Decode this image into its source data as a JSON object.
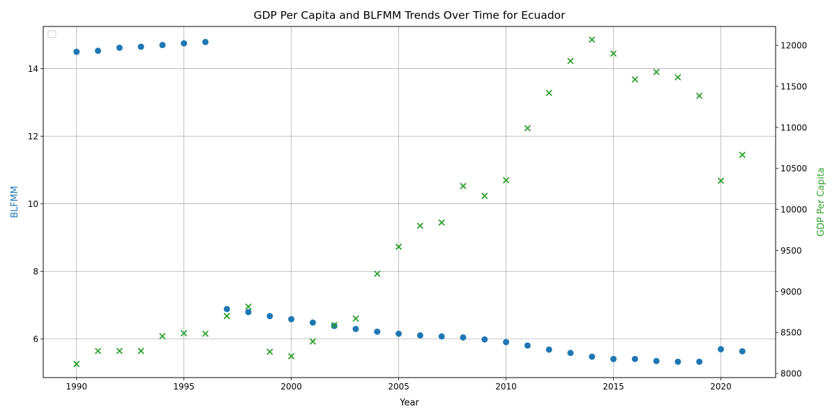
{
  "chart_data": {
    "type": "scatter",
    "title": "GDP Per Capita and BLFMM Trends Over Time for Ecuador",
    "xlabel": "Year",
    "ylabel_left": "BLFMM",
    "ylabel_right": "GDP Per Capita",
    "xlim": [
      1988.45,
      2022.55
    ],
    "ylim_left": [
      4.85,
      15.25
    ],
    "ylim_right": [
      7950,
      12230
    ],
    "x_ticks": [
      1990,
      1995,
      2000,
      2005,
      2010,
      2015,
      2020
    ],
    "y_ticks_left": [
      6,
      8,
      10,
      12,
      14
    ],
    "y_ticks_right": [
      8000,
      8500,
      9000,
      9500,
      10000,
      10500,
      11000,
      11500,
      12000
    ],
    "grid": true,
    "legend": "upper-left, empty",
    "colors": {
      "blfmm": "#1f77b4",
      "gdp": "#2ca02c"
    },
    "series": [
      {
        "axis": "left",
        "marker": "circle",
        "x": [
          1990,
          1991,
          1992,
          1993,
          1994,
          1995,
          1996,
          1997,
          1998,
          1999,
          2000,
          2001,
          2002,
          2003,
          2004,
          2005,
          2006,
          2007,
          2008,
          2009,
          2010,
          2011,
          2012,
          2013,
          2014,
          2015,
          2016,
          2017,
          2018,
          2019,
          2020,
          2021
        ],
        "values": [
          14.5,
          14.53,
          14.62,
          14.65,
          14.7,
          14.75,
          14.79,
          6.88,
          6.79,
          6.67,
          6.58,
          6.48,
          6.38,
          6.29,
          6.21,
          6.15,
          6.1,
          6.07,
          6.04,
          5.98,
          5.9,
          5.8,
          5.68,
          5.58,
          5.47,
          5.4,
          5.4,
          5.34,
          5.32,
          5.32,
          5.69,
          5.63
        ]
      },
      {
        "axis": "right",
        "marker": "x",
        "x": [
          1990,
          1991,
          1992,
          1993,
          1994,
          1995,
          1996,
          1997,
          1998,
          1999,
          2000,
          2001,
          2002,
          2003,
          2004,
          2005,
          2006,
          2007,
          2008,
          2009,
          2010,
          2011,
          2012,
          2013,
          2014,
          2015,
          2016,
          2017,
          2018,
          2019,
          2020,
          2021
        ],
        "values": [
          8115,
          8275,
          8275,
          8275,
          8455,
          8490,
          8485,
          8700,
          8815,
          8265,
          8210,
          8390,
          8590,
          8670,
          9215,
          9545,
          9800,
          9840,
          10285,
          10165,
          10355,
          10990,
          11420,
          11810,
          12070,
          11900,
          11585,
          11675,
          11610,
          11385,
          10350,
          10665
        ]
      }
    ]
  }
}
